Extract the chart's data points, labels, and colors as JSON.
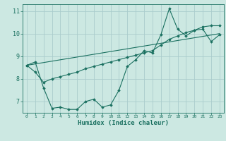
{
  "xlabel": "Humidex (Indice chaleur)",
  "bg_color": "#cce8e2",
  "grid_color": "#aacccc",
  "line_color": "#1a7060",
  "xlim": [
    -0.5,
    23.5
  ],
  "ylim": [
    6.5,
    11.3
  ],
  "yticks": [
    7,
    8,
    9,
    10,
    11
  ],
  "xticks": [
    0,
    1,
    2,
    3,
    4,
    5,
    6,
    7,
    8,
    9,
    10,
    11,
    12,
    13,
    14,
    15,
    16,
    17,
    18,
    19,
    20,
    21,
    22,
    23
  ],
  "series1_x": [
    0,
    1,
    2,
    3,
    4,
    5,
    6,
    7,
    8,
    9,
    10,
    11,
    12,
    13,
    14,
    15,
    16,
    17,
    18,
    19,
    20,
    21,
    22,
    23
  ],
  "series1_y": [
    8.6,
    8.75,
    7.6,
    6.7,
    6.75,
    6.65,
    6.65,
    7.0,
    7.1,
    6.75,
    6.85,
    7.5,
    8.55,
    8.85,
    9.25,
    9.15,
    9.95,
    11.1,
    10.2,
    9.9,
    10.15,
    10.2,
    9.65,
    9.95
  ],
  "series2_x": [
    0,
    1,
    2,
    3,
    4,
    5,
    6,
    7,
    8,
    9,
    10,
    11,
    12,
    13,
    14,
    15,
    16,
    17,
    18,
    19,
    20,
    21,
    22,
    23
  ],
  "series2_y": [
    8.6,
    8.3,
    7.85,
    8.0,
    8.1,
    8.2,
    8.3,
    8.45,
    8.55,
    8.65,
    8.75,
    8.85,
    8.95,
    9.05,
    9.15,
    9.25,
    9.5,
    9.75,
    9.9,
    10.05,
    10.15,
    10.3,
    10.35,
    10.35
  ],
  "series3_x": [
    0,
    23
  ],
  "series3_y": [
    8.6,
    10.0
  ]
}
